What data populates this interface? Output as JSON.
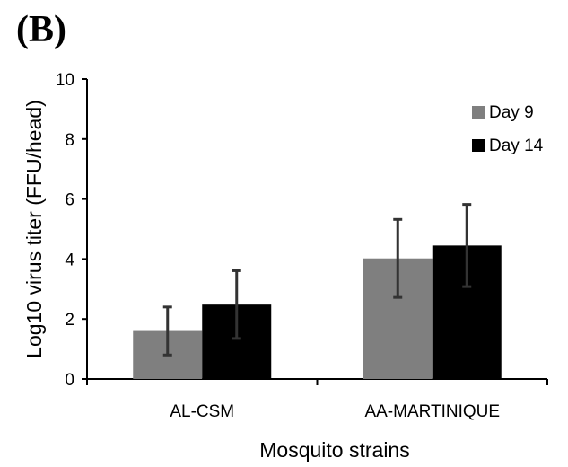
{
  "panel_label": "(B)",
  "chart_data": {
    "type": "bar",
    "categories": [
      "AL-CSM",
      "AA-MARTINIQUE"
    ],
    "series": [
      {
        "name": "Day 9",
        "color": "#7f7f7f",
        "values": [
          1.6,
          4.02
        ],
        "error": [
          0.8,
          1.3
        ]
      },
      {
        "name": "Day 14",
        "color": "#000000",
        "values": [
          2.48,
          4.45
        ],
        "error": [
          1.13,
          1.37
        ]
      }
    ],
    "title": "",
    "xlabel": "Mosquito strains",
    "ylabel": "Log10 virus titer (FFU/head)",
    "ylim": [
      0,
      10
    ],
    "yticks": [
      0,
      2,
      4,
      6,
      8,
      10
    ],
    "grid": false,
    "legend_position": "top-right"
  }
}
